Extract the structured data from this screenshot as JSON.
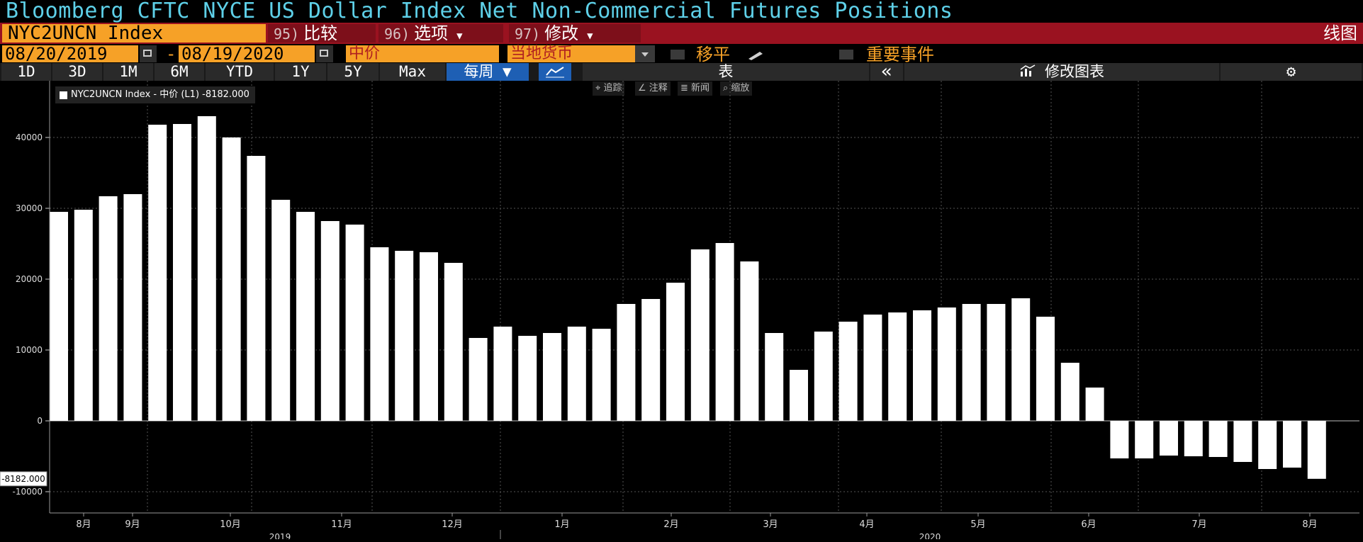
{
  "header": {
    "title": "Bloomberg CFTC NYCE US Dollar Index Net Non-Commercial Futures Positions"
  },
  "toolbar": {
    "ticker": "NYC2UNCN Index",
    "compare": {
      "num": "95)",
      "label": "比较"
    },
    "options": {
      "num": "96)",
      "label": "选项"
    },
    "edit": {
      "num": "97)",
      "label": "修改"
    },
    "chart_type": "线图"
  },
  "controls": {
    "start_date": "08/20/2019",
    "dash": "-",
    "end_date": "08/19/2020",
    "price_field": "中价",
    "currency": "当地货币",
    "shift_label": "移平",
    "events_label": "重要事件"
  },
  "ranges": {
    "items": [
      "1D",
      "3D",
      "1M",
      "6M",
      "YTD",
      "1Y",
      "5Y",
      "Max"
    ],
    "periodicity": "每周 ▼",
    "table_label": "表",
    "collapse": "«",
    "edit_chart": "修改图表",
    "gear": "⚙"
  },
  "tools": {
    "track": "追踪",
    "annotate": "注释",
    "news": "新闻",
    "zoom": "缩放"
  },
  "legend": {
    "label": "NYC2UNCN Index - 中价 (L1) -8182.000"
  },
  "colors": {
    "title": "#5ed0e8",
    "accent": "#f6a127",
    "menubar": "#9a1220",
    "bars": "#ffffff",
    "background": "#000000"
  },
  "chart_data": {
    "type": "bar",
    "title": "Bloomberg CFTC NYCE US Dollar Index Net Non-Commercial Futures Positions",
    "series": [
      {
        "name": "NYC2UNCN Index - 中价 (L1)",
        "values": [
          29500,
          29800,
          31700,
          32000,
          41800,
          41900,
          43000,
          40000,
          37400,
          31200,
          29500,
          28200,
          27700,
          24500,
          24000,
          23800,
          22300,
          11700,
          13300,
          12000,
          12400,
          13300,
          13000,
          16500,
          17200,
          19500,
          24200,
          25100,
          22500,
          12400,
          7200,
          12600,
          14000,
          15000,
          15300,
          15600,
          16000,
          16500,
          16500,
          17300,
          14700,
          8200,
          4700,
          -5300,
          -5300,
          -4900,
          -5000,
          -5100,
          -5800,
          -6800,
          -6600,
          -8182
        ]
      }
    ],
    "last_value": "-8182.000",
    "ylim": [
      -13000,
      48000
    ],
    "yticks": [
      -10000,
      0,
      10000,
      20000,
      30000,
      40000
    ],
    "ytick_labels": [
      "-10000",
      "0",
      "10000",
      "20000",
      "30000",
      "40000"
    ],
    "month_labels": [
      "8月",
      "9月",
      "10月",
      "11月",
      "12月",
      "1月",
      "2月",
      "3月",
      "4月",
      "5月",
      "6月",
      "7月",
      "8月"
    ],
    "year_labels": [
      "2019",
      "2020"
    ],
    "grid": true
  }
}
